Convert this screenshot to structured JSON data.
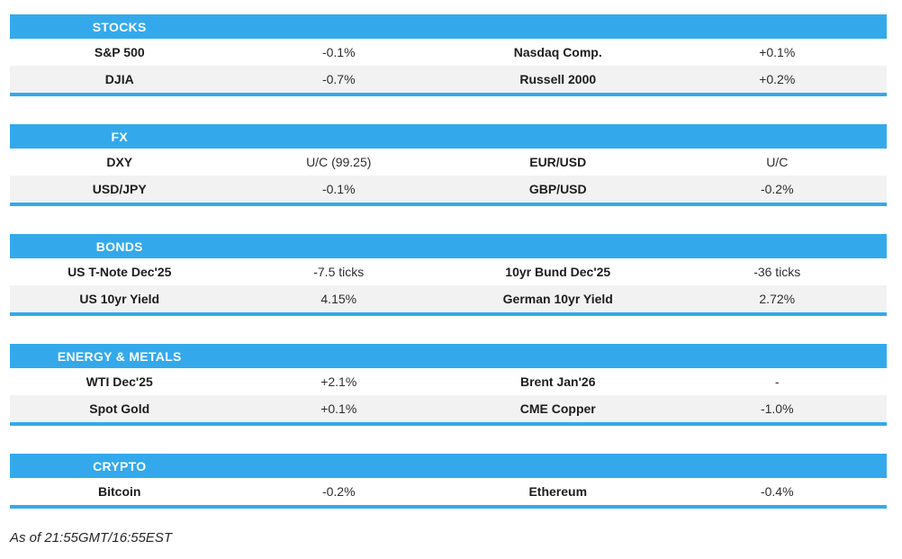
{
  "colors": {
    "accent_blue": "#33a9ec",
    "row_alt_gray": "#f2f2f2",
    "header_text": "#ffffff",
    "label_text": "#1d1d1d"
  },
  "sections": [
    {
      "title": "STOCKS",
      "rows": [
        {
          "label_left": "S&P 500",
          "value_left": "-0.1%",
          "label_right": "Nasdaq Comp.",
          "value_right": "+0.1%"
        },
        {
          "label_left": "DJIA",
          "value_left": "-0.7%",
          "label_right": "Russell 2000",
          "value_right": "+0.2%"
        }
      ]
    },
    {
      "title": "FX",
      "rows": [
        {
          "label_left": "DXY",
          "value_left": "U/C (99.25)",
          "label_right": "EUR/USD",
          "value_right": "U/C"
        },
        {
          "label_left": "USD/JPY",
          "value_left": "-0.1%",
          "label_right": "GBP/USD",
          "value_right": "-0.2%"
        }
      ]
    },
    {
      "title": "BONDS",
      "rows": [
        {
          "label_left": "US T-Note Dec'25",
          "value_left": "-7.5 ticks",
          "label_right": "10yr Bund Dec'25",
          "value_right": "-36 ticks"
        },
        {
          "label_left": "US 10yr Yield",
          "value_left": "4.15%",
          "label_right": "German 10yr Yield",
          "value_right": "2.72%"
        }
      ]
    },
    {
      "title": "ENERGY & METALS",
      "rows": [
        {
          "label_left": "WTI Dec'25",
          "value_left": "+2.1%",
          "label_right": "Brent Jan'26",
          "value_right": "-"
        },
        {
          "label_left": "Spot Gold",
          "value_left": "+0.1%",
          "label_right": "CME Copper",
          "value_right": "-1.0%"
        }
      ]
    },
    {
      "title": "CRYPTO",
      "rows": [
        {
          "label_left": "Bitcoin",
          "value_left": "-0.2%",
          "label_right": "Ethereum",
          "value_right": "-0.4%"
        }
      ]
    }
  ],
  "footer": {
    "as_of": "As of 21:55GMT/16:55EST"
  }
}
